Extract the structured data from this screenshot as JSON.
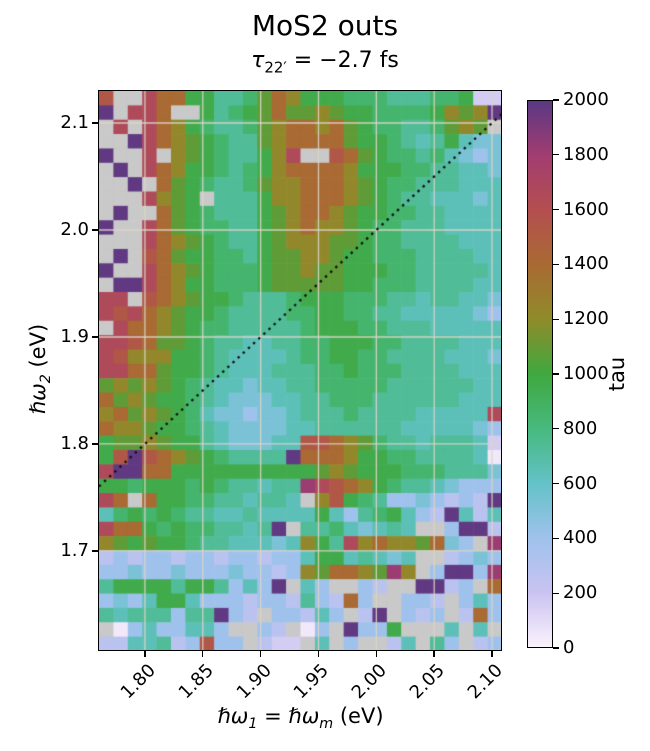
{
  "figure": {
    "title": "MoS2 outs",
    "subtitle": {
      "symbol": "τ",
      "subscript": "22′",
      "rest": " = −2.7 fs"
    }
  },
  "axes": {
    "xlabel": {
      "pre": "ℏω",
      "sub1": "1",
      "mid": " = ℏω",
      "sub2": "m",
      "post": " (eV)"
    },
    "ylabel": {
      "pre": "ℏω",
      "sub": "2",
      "post": " (eV)"
    },
    "xticks": {
      "labels": [
        "1.80",
        "1.85",
        "1.90",
        "1.95",
        "2.00",
        "2.05",
        "2.10"
      ],
      "values": [
        1.8,
        1.85,
        1.9,
        1.95,
        2.0,
        2.05,
        2.1
      ]
    },
    "yticks": {
      "labels": [
        "2.1",
        "2.0",
        "1.9",
        "1.8",
        "1.7"
      ],
      "values": [
        2.1,
        2.0,
        1.9,
        1.8,
        1.7
      ]
    },
    "grid_color": "#dcd5c6"
  },
  "colorbar": {
    "label": "tau",
    "tick_labels": [
      "0",
      "200",
      "400",
      "600",
      "800",
      "1000",
      "1200",
      "1400",
      "1600",
      "1800",
      "2000"
    ],
    "tick_values": [
      0,
      200,
      400,
      600,
      800,
      1000,
      1200,
      1400,
      1600,
      1800,
      2000
    ],
    "min": 0,
    "max": 2000,
    "stops": [
      [
        0,
        "#fbf2fc"
      ],
      [
        200,
        "#c9c3f1"
      ],
      [
        400,
        "#9fc2ec"
      ],
      [
        600,
        "#63c2c7"
      ],
      [
        800,
        "#47b97e"
      ],
      [
        1000,
        "#3fa83f"
      ],
      [
        1200,
        "#8f8b2a"
      ],
      [
        1400,
        "#a96a33"
      ],
      [
        1600,
        "#b44f50"
      ],
      [
        1800,
        "#a23d70"
      ],
      [
        2000,
        "#5a3884"
      ]
    ],
    "nan_color": "#c9c9c9"
  },
  "chart_data": {
    "type": "heatmap",
    "title": "MoS2 outs",
    "subtitle": "τ_22′ = −2.7 fs",
    "xlabel": "ℏω1 = ℏω_m (eV)",
    "ylabel": "ℏω2 (eV)",
    "value_label": "tau",
    "x_range": [
      1.7603,
      2.1086
    ],
    "y_range": [
      1.6065,
      2.1299
    ],
    "value_range": [
      0,
      2000
    ],
    "grid_on": true,
    "diagonal_line": "ω2 = ω1 (dotted black)",
    "cols": 28,
    "rows": 39,
    "cell_value_map": {
      ".": null,
      "0": 40,
      "1": 160,
      "2": 270,
      "3": 400,
      "4": 520,
      "5": 640,
      "6": 730,
      "7": 850,
      "8": 960,
      "9": 1080,
      "a": 1220,
      "b": 1400,
      "c": 1540,
      "d": 1660,
      "e": 1820,
      "f": 1980
    },
    "cells_top_to_bottom": [
      "c..dbb886679ba88877766677811",
      "f.ddb..86789b99a98877778a9af",
      ".d.dba876679abbab98776679a9.",
      "..fdba987669abbbb98876568544",
      "f..d.a987668ad..cb9877675434",
      ".f.dba887678abbbba8887766554",
      "..f.b9876679aabbba9877666555",
      "...da98.6668aabbba9876655545",
      ".f..b98766689abba98877665555",
      "f..db98776689abaa98776665555",
      "...dba9876689aaa998776666555",
      ".f.cb988776899aa988777666655",
      "f..dba98777899a9988877666665",
      ".ffdba8877789999988777666655",
      "dd.cba9887666788877766566554",
      "dcdba98876666778877665555543",
      ".dbba98776666678887766655555",
      "ddcb998766556677888776666555",
      "dcaaa88765555677887766665554",
      "ddbb988765556667787776666555",
      "9a9a987655455667777766666655",
      "b9a9887654445566777666666555",
      "ab9a98754434456667666655555d",
      "baa9887654444556666665555543",
      "899a9886544455ccba9766566651",
      "8cfcba9876666fbbba8877666650",
      "dffbb88888888889a98887776664",
      "88788878766566edcba876654333",
      "db.b8877665665.ac8763343232f",
      "578787665565555853678532f525",
      "dbb878776656f.66754565..3ff2",
      "a9898876655545a86dabaa9b43.e",
      "2323323323323358856545..2343",
      "33433433343323a9bba9ea.3ff3e",
      "688886886353f.53..32..ff23.b",
      "34358853332332632b3..332.353",
      "65666366f32.33253.2f.323.2b3",
      ".03533553..32.03.f338...5.5.",
      "2255623c33.211.5.3..25.63.23"
    ]
  }
}
